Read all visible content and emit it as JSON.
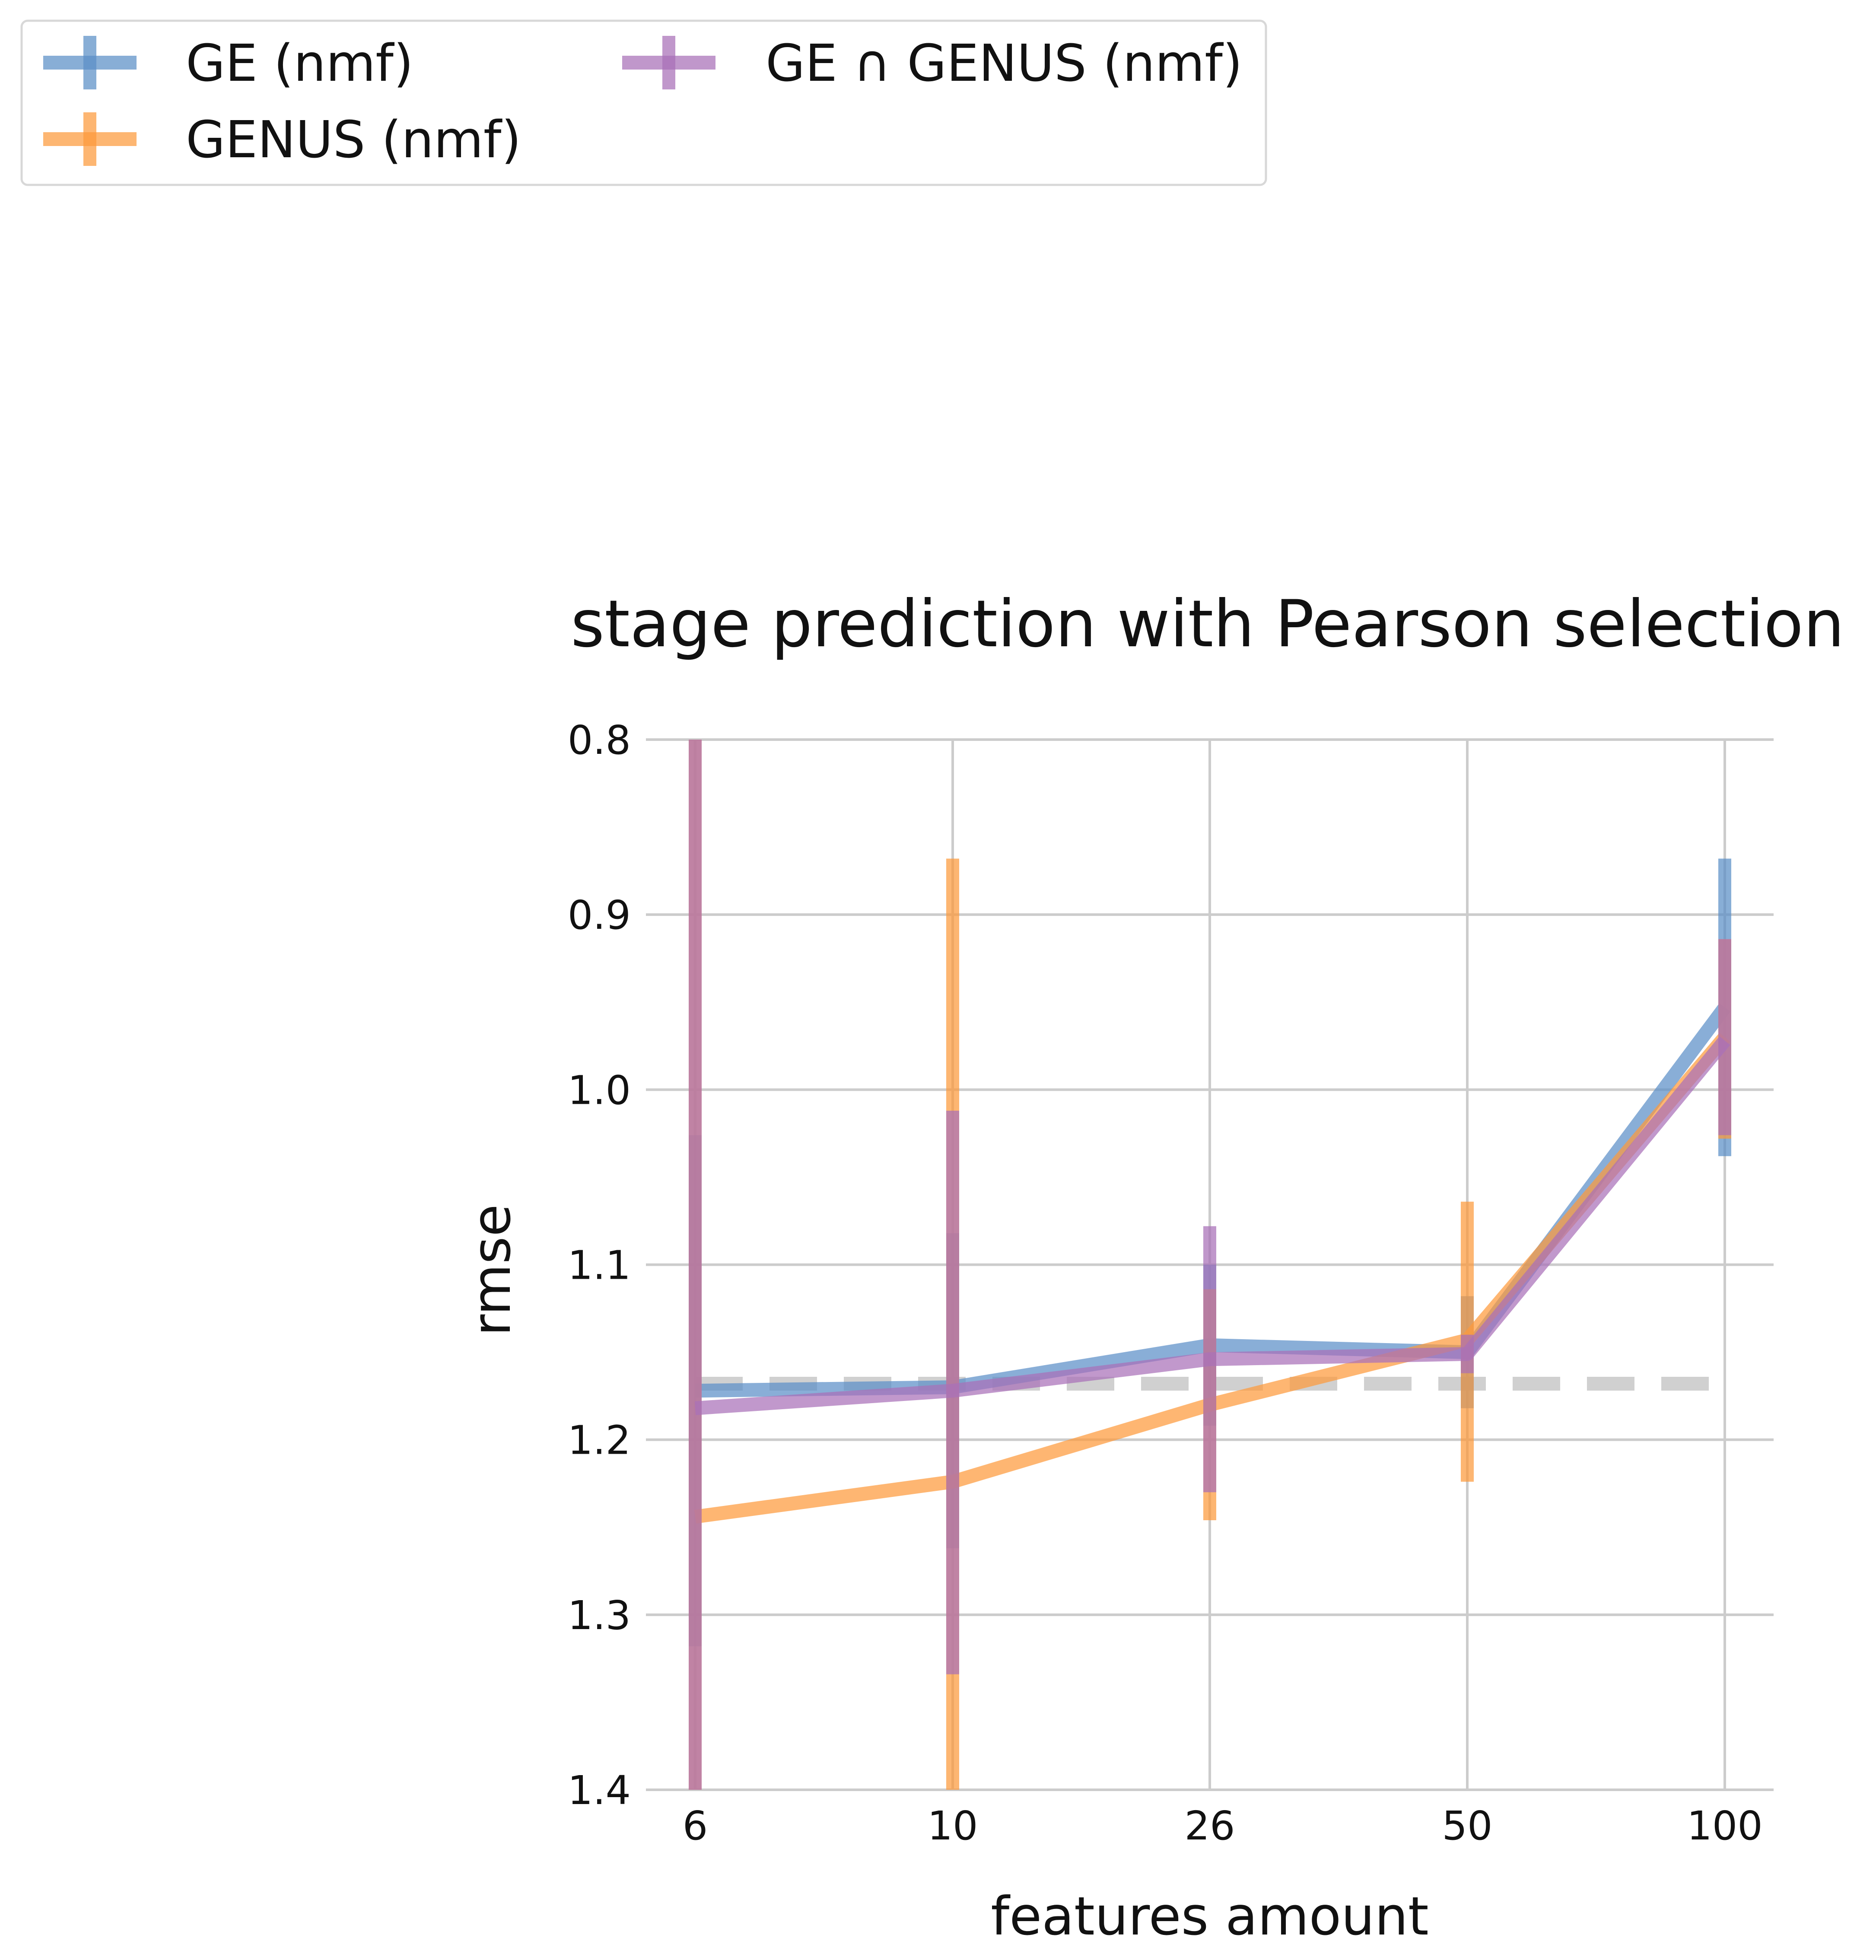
{
  "chart_data": {
    "type": "line",
    "title": "stage prediction with Pearson selection",
    "xlabel": "features amount",
    "ylabel": "rmse",
    "x_categories": [
      "6",
      "10",
      "26",
      "50",
      "100"
    ],
    "y_ticks": [
      "0.8",
      "0.9",
      "1.0",
      "1.1",
      "1.2",
      "1.3",
      "1.4"
    ],
    "ylim": [
      1.4,
      0.8
    ],
    "y_inverted": true,
    "grid": true,
    "legend_position": "top-left, outside plot",
    "baseline": {
      "value": 1.168,
      "style": "dashed",
      "color": "#cccccc"
    },
    "series": [
      {
        "name": "GE (nmf)",
        "color": "#5b8fc7",
        "values": [
          1.172,
          1.17,
          1.146,
          1.15,
          0.953
        ],
        "err_low": [
          1.318,
          1.262,
          1.192,
          1.182,
          1.038
        ],
        "err_high": [
          1.026,
          1.082,
          1.1,
          1.118,
          0.868
        ]
      },
      {
        "name": "GENUS (nmf)",
        "color": "#fd9a3c",
        "values": [
          1.244,
          1.224,
          1.18,
          1.143,
          0.97
        ],
        "err_low": [
          1.4,
          1.4,
          1.246,
          1.224,
          1.028
        ],
        "err_high": [
          0.8,
          0.868,
          1.114,
          1.064,
          0.914
        ]
      },
      {
        "name": "GE ∩ GENUS (nmf)",
        "color": "#a970b8",
        "values": [
          1.182,
          1.172,
          1.154,
          1.151,
          0.972
        ],
        "err_low": [
          1.4,
          1.334,
          1.23,
          1.162,
          1.026
        ],
        "err_high": [
          0.8,
          1.012,
          1.078,
          1.14,
          0.914
        ]
      }
    ]
  }
}
